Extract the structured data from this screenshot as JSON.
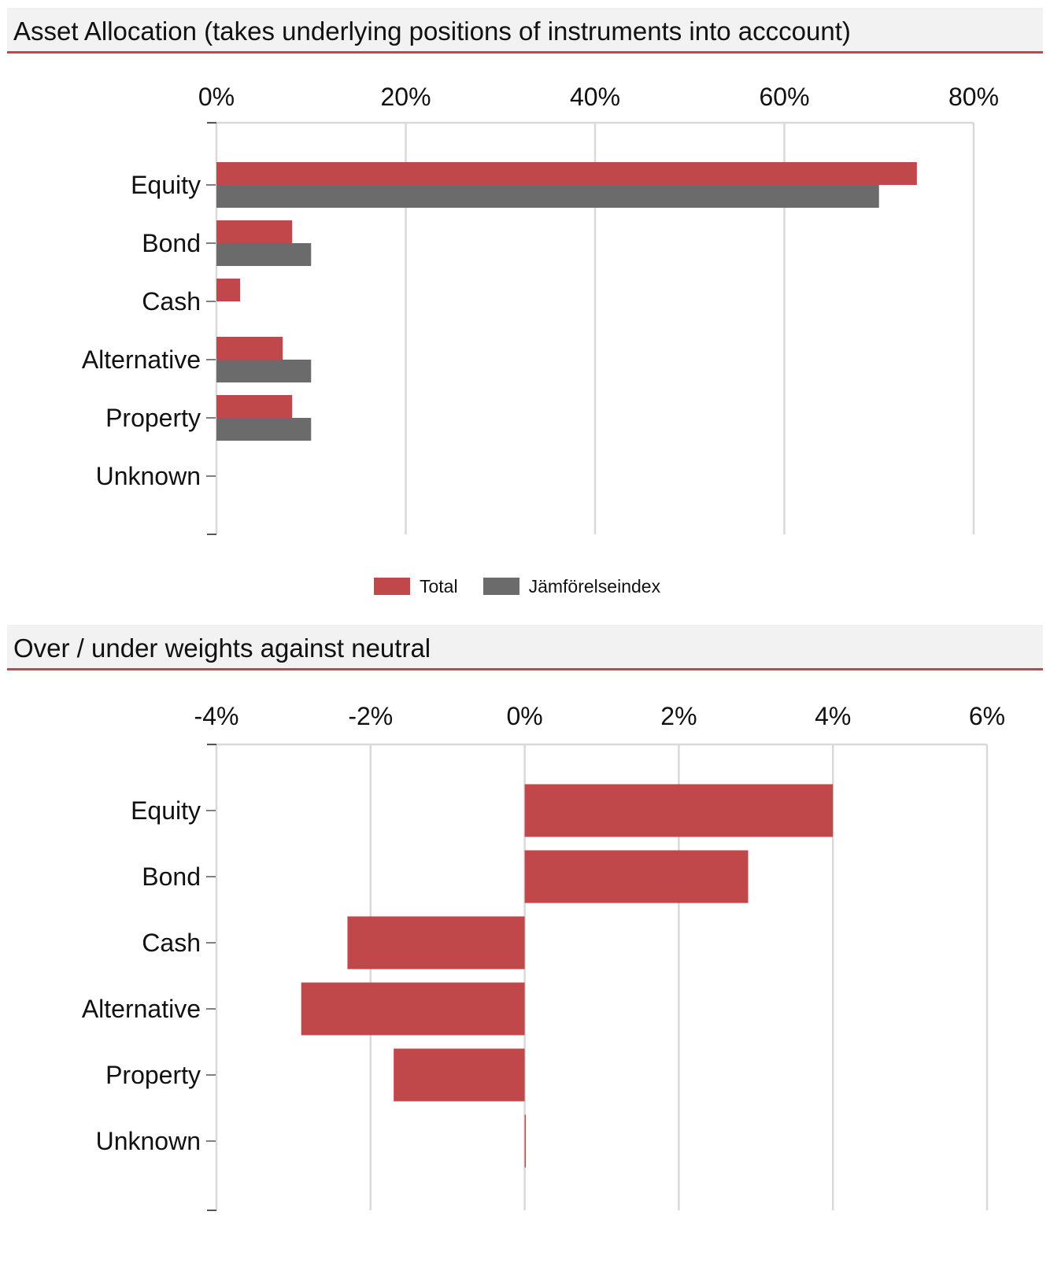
{
  "panels": {
    "allocation_title": "Asset Allocation (takes underlying positions of instruments into acccount)",
    "weights_title": "Over / under weights against neutral"
  },
  "colors": {
    "total": "#c0474a",
    "benchmark": "#6b6b6b",
    "accent": "#c0474a",
    "grid": "#d9d9d9",
    "header_bg": "#f2f2f2"
  },
  "legend": {
    "total": "Total",
    "benchmark": "Jämförelseindex"
  },
  "chart_data": [
    {
      "type": "bar",
      "orientation": "horizontal",
      "title": "Asset Allocation (takes underlying positions of instruments into acccount)",
      "categories": [
        "Equity",
        "Bond",
        "Cash",
        "Alternative",
        "Property",
        "Unknown"
      ],
      "series": [
        {
          "name": "Total",
          "values": [
            74,
            8,
            2.5,
            7,
            8,
            0
          ]
        },
        {
          "name": "Jämförelseindex",
          "values": [
            70,
            10,
            0,
            10,
            10,
            0
          ]
        }
      ],
      "xlim": [
        0,
        80
      ],
      "xticks": [
        0,
        20,
        40,
        60,
        80
      ],
      "xtick_labels": [
        "0%",
        "20%",
        "40%",
        "60%",
        "80%"
      ],
      "unit": "%",
      "grid": true,
      "legend_position": "bottom"
    },
    {
      "type": "bar",
      "orientation": "horizontal",
      "title": "Over / under weights against neutral",
      "categories": [
        "Equity",
        "Bond",
        "Cash",
        "Alternative",
        "Property",
        "Unknown"
      ],
      "series": [
        {
          "name": "Total",
          "values": [
            4.0,
            2.9,
            -2.3,
            -2.9,
            -1.7,
            0.0
          ]
        }
      ],
      "xlim": [
        -4,
        6
      ],
      "xticks": [
        -4,
        -2,
        0,
        2,
        4,
        6
      ],
      "xtick_labels": [
        "-4%",
        "-2%",
        "0%",
        "2%",
        "4%",
        "6%"
      ],
      "unit": "%",
      "grid": true
    }
  ]
}
